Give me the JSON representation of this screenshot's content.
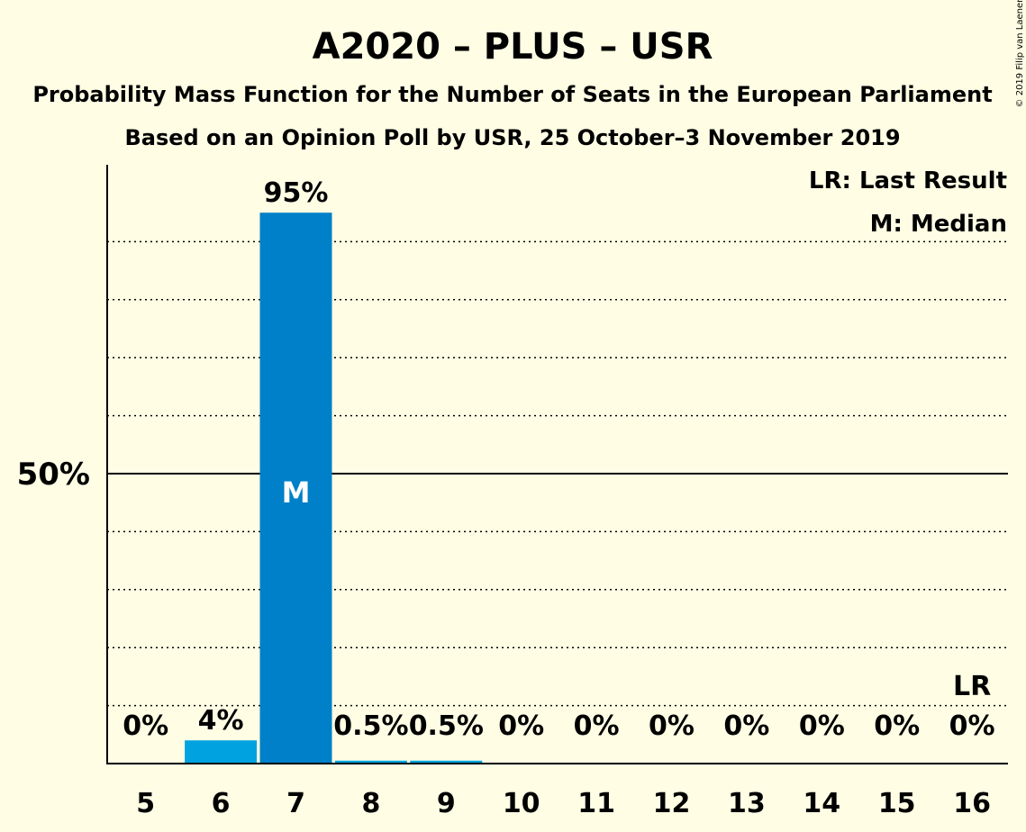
{
  "chart_data": {
    "type": "bar",
    "title": "A2020 – PLUS – USR",
    "subtitle": "Probability Mass Function for the Number of Seats in the European Parliament",
    "subtitle2": "Based on an Opinion Poll by USR, 25 October–3 November 2019",
    "copyright": "© 2019 Filip van Laenen",
    "categories": [
      "5",
      "6",
      "7",
      "8",
      "9",
      "10",
      "11",
      "12",
      "13",
      "14",
      "15",
      "16"
    ],
    "values": [
      0,
      4.0,
      95.0,
      0.5,
      0.5,
      0,
      0,
      0,
      0,
      0,
      0,
      0
    ],
    "value_labels": [
      "0%",
      "4%",
      "95%",
      "0.5%",
      "0.5%",
      "0%",
      "0%",
      "0%",
      "0%",
      "0%",
      "0%",
      "0%"
    ],
    "ylim": [
      0,
      103
    ],
    "y_tick_label": "50%",
    "y_tick_value": 50,
    "gridlines": [
      10,
      20,
      30,
      40,
      60,
      70,
      80,
      90
    ],
    "median_category": "7",
    "median_label": "M",
    "last_result_category": "16",
    "last_result_label": "LR",
    "legend": [
      "LR: Last Result",
      "M: Median"
    ],
    "colors": {
      "background": "#FFFEE5",
      "median_bar": "#0080C8",
      "other_bar": "#00A3E0",
      "text": "#000000"
    }
  }
}
